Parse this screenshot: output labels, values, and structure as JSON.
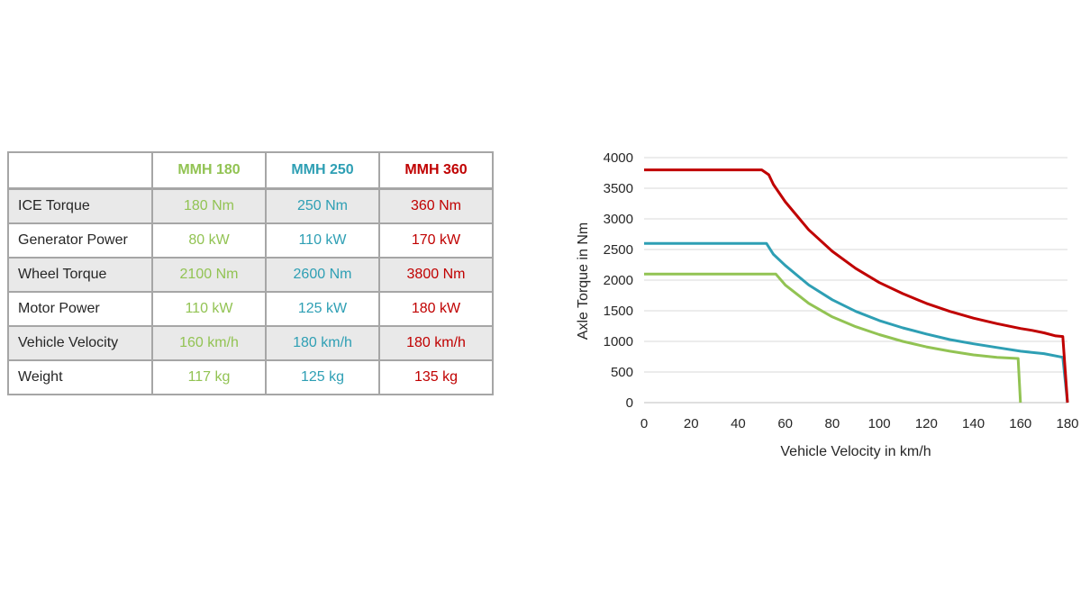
{
  "table": {
    "columns": [
      {
        "label": "",
        "color": "#262626"
      },
      {
        "label": "MMH 180",
        "color": "#92c353"
      },
      {
        "label": "MMH 250",
        "color": "#2e9fb4"
      },
      {
        "label": "MMH 360",
        "color": "#c00000"
      }
    ],
    "rows": [
      {
        "label": "ICE Torque",
        "values": [
          "180 Nm",
          "250 Nm",
          "360 Nm"
        ]
      },
      {
        "label": "Generator Power",
        "values": [
          "80 kW",
          "110 kW",
          "170 kW"
        ]
      },
      {
        "label": "Wheel Torque",
        "values": [
          "2100 Nm",
          "2600 Nm",
          "3800 Nm"
        ]
      },
      {
        "label": "Motor Power",
        "values": [
          "110 kW",
          "125 kW",
          "180 kW"
        ]
      },
      {
        "label": "Vehicle Velocity",
        "values": [
          "160 km/h",
          "180 km/h",
          "180 km/h"
        ]
      },
      {
        "label": "Weight",
        "values": [
          "117 kg",
          "125 kg",
          "135 kg"
        ]
      }
    ]
  },
  "chart_data": {
    "type": "line",
    "xlabel": "Vehicle Velocity in km/h",
    "ylabel": "Axle Torque in Nm",
    "xlim": [
      0,
      180
    ],
    "ylim": [
      0,
      4000
    ],
    "xticks": [
      "0",
      "20",
      "40",
      "60",
      "80",
      "100",
      "120",
      "140",
      "160",
      "180"
    ],
    "yticks": [
      "0",
      "500",
      "1000",
      "1500",
      "2000",
      "2500",
      "3000",
      "3500",
      "4000"
    ],
    "grid": "horizontal",
    "legend": "none",
    "series": [
      {
        "color": "#92c353",
        "points": [
          [
            0,
            2100
          ],
          [
            56,
            2100
          ],
          [
            60,
            1920
          ],
          [
            70,
            1620
          ],
          [
            80,
            1400
          ],
          [
            90,
            1240
          ],
          [
            100,
            1110
          ],
          [
            110,
            1000
          ],
          [
            120,
            910
          ],
          [
            130,
            840
          ],
          [
            140,
            780
          ],
          [
            150,
            740
          ],
          [
            159,
            720
          ],
          [
            160,
            0
          ]
        ]
      },
      {
        "color": "#2e9fb4",
        "points": [
          [
            0,
            2600
          ],
          [
            52,
            2600
          ],
          [
            55,
            2420
          ],
          [
            60,
            2240
          ],
          [
            70,
            1920
          ],
          [
            80,
            1680
          ],
          [
            90,
            1490
          ],
          [
            100,
            1340
          ],
          [
            110,
            1220
          ],
          [
            120,
            1120
          ],
          [
            130,
            1030
          ],
          [
            140,
            960
          ],
          [
            150,
            900
          ],
          [
            160,
            840
          ],
          [
            170,
            800
          ],
          [
            178,
            740
          ],
          [
            180,
            0
          ]
        ]
      },
      {
        "color": "#c00000",
        "points": [
          [
            0,
            3800
          ],
          [
            50,
            3800
          ],
          [
            53,
            3720
          ],
          [
            55,
            3560
          ],
          [
            60,
            3280
          ],
          [
            70,
            2820
          ],
          [
            80,
            2470
          ],
          [
            90,
            2190
          ],
          [
            100,
            1960
          ],
          [
            110,
            1780
          ],
          [
            120,
            1620
          ],
          [
            130,
            1490
          ],
          [
            140,
            1380
          ],
          [
            150,
            1290
          ],
          [
            160,
            1210
          ],
          [
            165,
            1180
          ],
          [
            170,
            1140
          ],
          [
            175,
            1090
          ],
          [
            178,
            1080
          ],
          [
            180,
            0
          ]
        ]
      }
    ]
  }
}
